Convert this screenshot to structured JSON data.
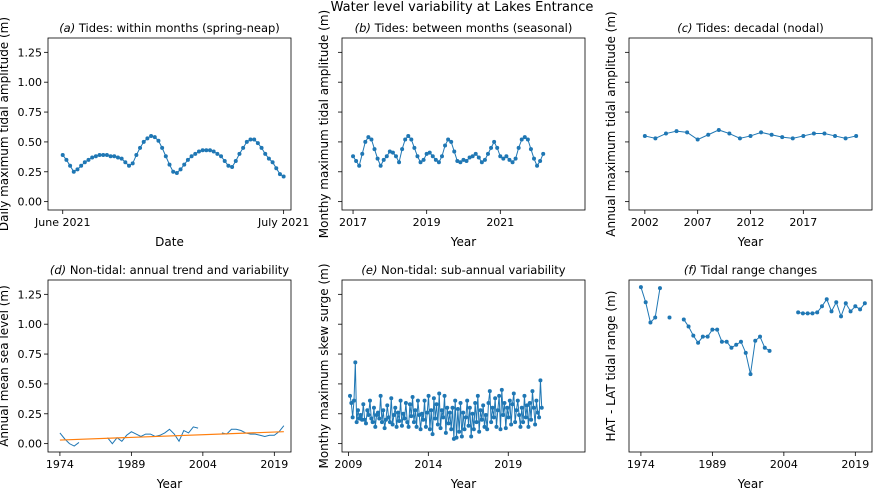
{
  "figure": {
    "title": "Water level variability at Lakes Entrance",
    "colors": {
      "series": "#1f77b4",
      "trend": "#ff7f0e",
      "axis": "#000000"
    }
  },
  "chart_data": [
    {
      "id": "a",
      "type": "scatter",
      "title": "Tides: within months (spring-neap)",
      "title_prefix": "(a)",
      "xlabel": "Date",
      "ylabel": "Daily maximum tidal amplitude (m)",
      "x_axis": "date",
      "xlim": [
        "2021-05-30",
        "2021-07-02"
      ],
      "xticks": [
        "2021-06-01",
        "2021-07-01"
      ],
      "xtick_labels": [
        "June 2021",
        "July 2021"
      ],
      "ylim": [
        -0.07,
        1.37
      ],
      "yticks": [
        0,
        0.25,
        0.5,
        0.75,
        1.0,
        1.25
      ],
      "ytick_labels": [
        "0.00",
        "0.25",
        "0.50",
        "0.75",
        "1.00",
        "1.25"
      ],
      "grid": false,
      "lines": true,
      "series": [
        {
          "x_start": "2021-06-01",
          "x_step_days": 0.5,
          "values": [
            0.39,
            0.35,
            0.3,
            0.25,
            0.27,
            0.3,
            0.33,
            0.35,
            0.37,
            0.38,
            0.39,
            0.39,
            0.39,
            0.38,
            0.38,
            0.37,
            0.36,
            0.33,
            0.3,
            0.32,
            0.39,
            0.45,
            0.5,
            0.53,
            0.55,
            0.54,
            0.51,
            0.45,
            0.38,
            0.31,
            0.25,
            0.24,
            0.27,
            0.31,
            0.35,
            0.38,
            0.4,
            0.42,
            0.43,
            0.43,
            0.43,
            0.42,
            0.4,
            0.38,
            0.34,
            0.3,
            0.29,
            0.34,
            0.4,
            0.45,
            0.5,
            0.52,
            0.52,
            0.49,
            0.45,
            0.4,
            0.36,
            0.33,
            0.28,
            0.23,
            0.21
          ]
        }
      ]
    },
    {
      "id": "b",
      "type": "scatter",
      "title": "Tides: between months (seasonal)",
      "title_prefix": "(b)",
      "xlabel": "Year",
      "ylabel": "Monthy maximum tidal amplitude (m)",
      "xlim": [
        2016.7,
        2023.3
      ],
      "xticks": [
        2017,
        2019,
        2021
      ],
      "xtick_labels": [
        "2017",
        "2019",
        "2021"
      ],
      "ylim": [
        -0.07,
        1.37
      ],
      "yticks": [
        0,
        0.25,
        0.5,
        0.75,
        1.0,
        1.25
      ],
      "ytick_labels": [],
      "grid": false,
      "lines": true,
      "series": [
        {
          "x_start": 2017.0,
          "x_step": 0.0833,
          "values": [
            0.38,
            0.34,
            0.3,
            0.4,
            0.5,
            0.54,
            0.52,
            0.44,
            0.36,
            0.3,
            0.35,
            0.38,
            0.42,
            0.41,
            0.38,
            0.33,
            0.44,
            0.52,
            0.55,
            0.52,
            0.45,
            0.38,
            0.33,
            0.35,
            0.4,
            0.41,
            0.38,
            0.35,
            0.33,
            0.38,
            0.47,
            0.52,
            0.5,
            0.42,
            0.34,
            0.33,
            0.35,
            0.34,
            0.37,
            0.38,
            0.4,
            0.37,
            0.33,
            0.35,
            0.4,
            0.45,
            0.5,
            0.45,
            0.38,
            0.36,
            0.38,
            0.35,
            0.33,
            0.36,
            0.45,
            0.52,
            0.54,
            0.52,
            0.44,
            0.36,
            0.3,
            0.34,
            0.4
          ]
        }
      ]
    },
    {
      "id": "c",
      "type": "scatter",
      "title": "Tides: decadal (nodal)",
      "title_prefix": "(c)",
      "xlabel": "Year",
      "ylabel": "Annual maximum tidal amplitude (m)",
      "xlim": [
        2000.5,
        2023.5
      ],
      "xticks": [
        2002,
        2007,
        2012,
        2017
      ],
      "xtick_labels": [
        "2002",
        "2007",
        "2012",
        "2017"
      ],
      "ylim": [
        -0.07,
        1.37
      ],
      "yticks": [
        0,
        0.25,
        0.5,
        0.75,
        1.0,
        1.25
      ],
      "ytick_labels": [],
      "grid": false,
      "lines": true,
      "series": [
        {
          "x": [
            2002,
            2003,
            2004,
            2005,
            2006,
            2007,
            2008,
            2009,
            2010,
            2011,
            2012,
            2013,
            2014,
            2015,
            2016,
            2017,
            2018,
            2019,
            2020,
            2021,
            2022
          ],
          "values": [
            0.55,
            0.53,
            0.57,
            0.59,
            0.58,
            0.52,
            0.56,
            0.6,
            0.57,
            0.53,
            0.55,
            0.58,
            0.56,
            0.54,
            0.53,
            0.55,
            0.57,
            0.57,
            0.55,
            0.53,
            0.55
          ]
        }
      ]
    },
    {
      "id": "d",
      "type": "line",
      "title": "Non-tidal: annual trend and variability",
      "title_prefix": "(d)",
      "xlabel": "Year",
      "ylabel": "Annual mean sea level (m)",
      "xlim": [
        1971.5,
        2022.5
      ],
      "xticks": [
        1974,
        1989,
        2004,
        2019
      ],
      "xtick_labels": [
        "1974",
        "1989",
        "2004",
        "2019"
      ],
      "ylim": [
        -0.07,
        1.37
      ],
      "yticks": [
        0,
        0.25,
        0.5,
        0.75,
        1.0,
        1.25
      ],
      "ytick_labels": [
        "0.00",
        "0.25",
        "0.50",
        "0.75",
        "1.00",
        "1.25"
      ],
      "grid": false,
      "series": [
        {
          "role": "data",
          "x": [
            1974,
            1975,
            1976,
            1977,
            1978,
            null,
            1984,
            1985,
            1986,
            1987,
            1988,
            1989,
            1990,
            1991,
            1992,
            1993,
            1994,
            1995,
            1996,
            1997,
            1998,
            1999,
            2000,
            2001,
            2002,
            2003,
            null,
            2008,
            2009,
            2010,
            2011,
            2012,
            2013,
            2014,
            2015,
            2016,
            2017,
            2018,
            2019,
            2020,
            2021
          ],
          "values": [
            0.09,
            0.04,
            0.0,
            -0.02,
            0.01,
            null,
            0.05,
            0.0,
            0.05,
            0.02,
            0.07,
            0.1,
            0.08,
            0.06,
            0.08,
            0.08,
            0.06,
            0.07,
            0.09,
            0.12,
            0.08,
            0.02,
            0.11,
            0.09,
            0.14,
            0.13,
            null,
            0.09,
            0.08,
            0.12,
            0.12,
            0.11,
            0.09,
            0.08,
            0.08,
            0.07,
            0.06,
            0.07,
            0.07,
            0.1,
            0.15
          ]
        },
        {
          "role": "trend",
          "x": [
            1974,
            2021
          ],
          "values": [
            0.03,
            0.1
          ]
        }
      ]
    },
    {
      "id": "e",
      "type": "scatter",
      "title": "Non-tidal: sub-annual variability",
      "title_prefix": "(e)",
      "xlabel": "Year",
      "ylabel": "Monthy maximum skew surge (m)",
      "xlim": [
        2008.6,
        2023.8
      ],
      "xticks": [
        2009,
        2014,
        2019
      ],
      "xtick_labels": [
        "2009",
        "2014",
        "2019"
      ],
      "ylim": [
        -0.07,
        1.37
      ],
      "yticks": [
        0,
        0.25,
        0.5,
        0.75,
        1.0,
        1.25
      ],
      "ytick_labels": [],
      "grid": false,
      "lines": true,
      "series": [
        {
          "x_start": 2009.1,
          "x_step": 0.0833,
          "values": [
            0.4,
            0.34,
            0.22,
            0.36,
            0.68,
            0.18,
            0.28,
            0.21,
            0.24,
            0.2,
            0.33,
            0.2,
            0.17,
            0.28,
            0.24,
            0.36,
            0.21,
            0.18,
            0.3,
            0.14,
            0.24,
            0.26,
            0.21,
            0.4,
            0.18,
            0.28,
            0.13,
            0.2,
            0.32,
            0.22,
            0.18,
            0.38,
            0.16,
            0.24,
            0.3,
            0.14,
            0.26,
            0.19,
            0.36,
            0.15,
            0.25,
            0.21,
            0.34,
            0.18,
            0.14,
            0.33,
            0.23,
            0.39,
            0.18,
            0.28,
            0.14,
            0.36,
            0.24,
            0.12,
            0.25,
            0.2,
            0.36,
            0.14,
            0.26,
            0.4,
            0.12,
            0.28,
            0.08,
            0.38,
            0.21,
            0.33,
            0.16,
            0.42,
            0.13,
            0.28,
            0.22,
            0.4,
            0.09,
            0.3,
            0.17,
            0.26,
            0.12,
            0.3,
            0.04,
            0.36,
            0.05,
            0.29,
            0.1,
            0.34,
            0.06,
            0.26,
            0.12,
            0.22,
            0.36,
            0.15,
            0.3,
            0.06,
            0.25,
            0.12,
            0.34,
            0.18,
            0.4,
            0.1,
            0.28,
            0.2,
            0.32,
            0.14,
            0.24,
            0.12,
            0.34,
            0.44,
            0.18,
            0.3,
            0.22,
            0.38,
            0.14,
            0.28,
            0.4,
            0.12,
            0.45,
            0.24,
            0.34,
            0.13,
            0.3,
            0.22,
            0.36,
            0.16,
            0.33,
            0.42,
            0.18,
            0.28,
            0.36,
            0.24,
            0.14,
            0.3,
            0.18,
            0.4,
            0.22,
            0.32,
            0.14,
            0.34,
            0.2,
            0.44,
            0.3,
            0.16,
            0.36,
            0.26,
            0.22,
            0.53,
            0.3
          ]
        }
      ]
    },
    {
      "id": "f",
      "type": "scatter",
      "title": "Tidal range changes",
      "title_prefix": "(f)",
      "xlabel": "Year",
      "ylabel": "HAT - LAT tidal range (m)",
      "xlim": [
        1971.5,
        2022.5
      ],
      "xticks": [
        1974,
        1989,
        2004,
        2019
      ],
      "xtick_labels": [
        "1974",
        "1989",
        "2004",
        "2019"
      ],
      "ylim": [
        -0.5,
        16.5
      ],
      "yticks": [],
      "ytick_labels": [],
      "grid": false,
      "lines": true,
      "series": [
        {
          "x": [
            1974,
            1975,
            1976,
            1977,
            1978,
            null,
            1980,
            null,
            1983,
            1984,
            1985,
            1986,
            1987,
            1988,
            1989,
            1990,
            1991,
            1992,
            1993,
            1994,
            1995,
            1996,
            1997,
            1998,
            1999,
            2000,
            2001,
            2002,
            2003,
            null,
            2007,
            2008,
            2009,
            2010,
            2011,
            2012,
            2013,
            2014,
            2015,
            2016,
            2017,
            2018,
            2019,
            2020,
            2021
          ],
          "values": [
            15.8,
            14.3,
            12.3,
            12.8,
            15.7,
            null,
            12.8,
            null,
            12.6,
            11.9,
            11.0,
            10.3,
            10.9,
            10.9,
            11.6,
            11.6,
            10.4,
            10.4,
            9.8,
            10.1,
            10.4,
            9.3,
            7.2,
            10.5,
            10.9,
            9.8,
            9.5,
            null,
            null,
            null,
            13.3,
            13.2,
            13.2,
            13.2,
            13.3,
            13.9,
            14.6,
            13.4,
            14.3,
            12.9,
            14.2,
            13.4,
            13.9,
            13.6,
            14.2
          ]
        }
      ]
    }
  ]
}
